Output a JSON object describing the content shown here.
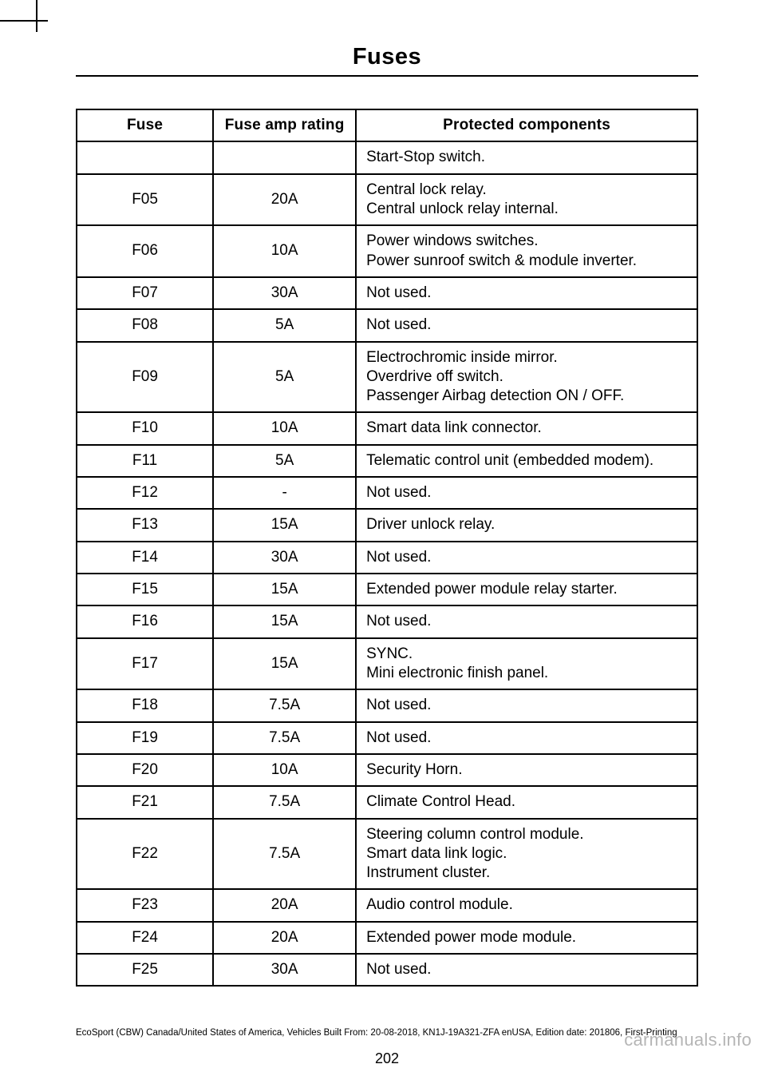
{
  "title": "Fuses",
  "page_number": "202",
  "footer": "EcoSport (CBW) Canada/United States of America, Vehicles Built From: 20-08-2018, KN1J-19A321-ZFA enUSA, Edition date: 201806, First-Printing",
  "watermark": "carmanuals.info",
  "table": {
    "headers": [
      "Fuse",
      "Fuse amp rating",
      "Protected components"
    ],
    "rows": [
      {
        "fuse": "",
        "rating": "",
        "components": [
          "Start-Stop switch."
        ]
      },
      {
        "fuse": "F05",
        "rating": "20A",
        "components": [
          "Central lock relay.",
          "Central unlock relay internal."
        ]
      },
      {
        "fuse": "F06",
        "rating": "10A",
        "components": [
          "Power windows switches.",
          "Power sunroof switch & module inverter."
        ]
      },
      {
        "fuse": "F07",
        "rating": "30A",
        "components": [
          "Not used."
        ]
      },
      {
        "fuse": "F08",
        "rating": "5A",
        "components": [
          "Not used."
        ]
      },
      {
        "fuse": "F09",
        "rating": "5A",
        "components": [
          "Electrochromic inside mirror.",
          "Overdrive off switch.",
          "Passenger Airbag detection ON / OFF."
        ]
      },
      {
        "fuse": "F10",
        "rating": "10A",
        "components": [
          "Smart data link connector."
        ]
      },
      {
        "fuse": "F11",
        "rating": "5A",
        "components": [
          "Telematic control unit (embedded modem)."
        ]
      },
      {
        "fuse": "F12",
        "rating": "-",
        "components": [
          "Not used."
        ]
      },
      {
        "fuse": "F13",
        "rating": "15A",
        "components": [
          "Driver unlock relay."
        ]
      },
      {
        "fuse": "F14",
        "rating": "30A",
        "components": [
          "Not used."
        ]
      },
      {
        "fuse": "F15",
        "rating": "15A",
        "components": [
          "Extended power module relay starter."
        ]
      },
      {
        "fuse": "F16",
        "rating": "15A",
        "components": [
          "Not used."
        ]
      },
      {
        "fuse": "F17",
        "rating": "15A",
        "components": [
          "SYNC.",
          "Mini electronic finish panel."
        ]
      },
      {
        "fuse": "F18",
        "rating": "7.5A",
        "components": [
          "Not used."
        ]
      },
      {
        "fuse": "F19",
        "rating": "7.5A",
        "components": [
          "Not used."
        ]
      },
      {
        "fuse": "F20",
        "rating": "10A",
        "components": [
          "Security Horn."
        ]
      },
      {
        "fuse": "F21",
        "rating": "7.5A",
        "components": [
          "Climate Control Head."
        ]
      },
      {
        "fuse": "F22",
        "rating": "7.5A",
        "components": [
          "Steering column control module.",
          "Smart data link logic.",
          "Instrument cluster."
        ]
      },
      {
        "fuse": "F23",
        "rating": "20A",
        "components": [
          "Audio control module."
        ]
      },
      {
        "fuse": "F24",
        "rating": "20A",
        "components": [
          "Extended power mode module."
        ]
      },
      {
        "fuse": "F25",
        "rating": "30A",
        "components": [
          "Not used."
        ]
      }
    ]
  }
}
